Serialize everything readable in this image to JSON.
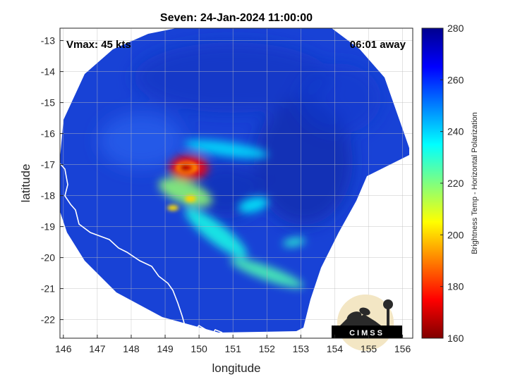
{
  "chart_data": {
    "type": "heatmap",
    "title": "Seven: 24-Jan-2024 11:00:00",
    "xlabel": "longitude",
    "ylabel": "latitude",
    "xlim": [
      145.9,
      156.3
    ],
    "ylim": [
      -22.6,
      -12.6
    ],
    "xticks": [
      "146",
      "147",
      "148",
      "149",
      "150",
      "151",
      "152",
      "153",
      "154",
      "155",
      "156"
    ],
    "yticks": [
      "-13",
      "-14",
      "-15",
      "-16",
      "-17",
      "-18",
      "-19",
      "-20",
      "-21",
      "-22"
    ],
    "grid": true,
    "annotations": {
      "vmax": "Vmax: 45 kts",
      "time_away": "06:01 away"
    },
    "colorbar": {
      "label": "Brightness Temp - Horizontal Polarization",
      "range": [
        160,
        280
      ],
      "ticks": [
        "280",
        "260",
        "240",
        "220",
        "200",
        "180",
        "160"
      ]
    },
    "logo_text": "CIMSS",
    "features": [
      {
        "name": "cold-core",
        "lon": 149.7,
        "lat": -17.1,
        "value": 175
      },
      {
        "name": "inner-band-south",
        "lon": 149.6,
        "lat": -17.9,
        "value": 218
      },
      {
        "name": "spiral-band-mid",
        "lon": 150.5,
        "lat": -19.2,
        "value": 232
      },
      {
        "name": "spiral-band-tail",
        "lon": 152.0,
        "lat": -20.5,
        "value": 226
      },
      {
        "name": "eastern-patch",
        "lon": 152.8,
        "lat": -19.5,
        "value": 230
      },
      {
        "name": "north-arc",
        "lon": 150.8,
        "lat": -16.5,
        "value": 238
      },
      {
        "name": "east-curl",
        "lon": 151.6,
        "lat": -18.3,
        "value": 236
      }
    ]
  }
}
